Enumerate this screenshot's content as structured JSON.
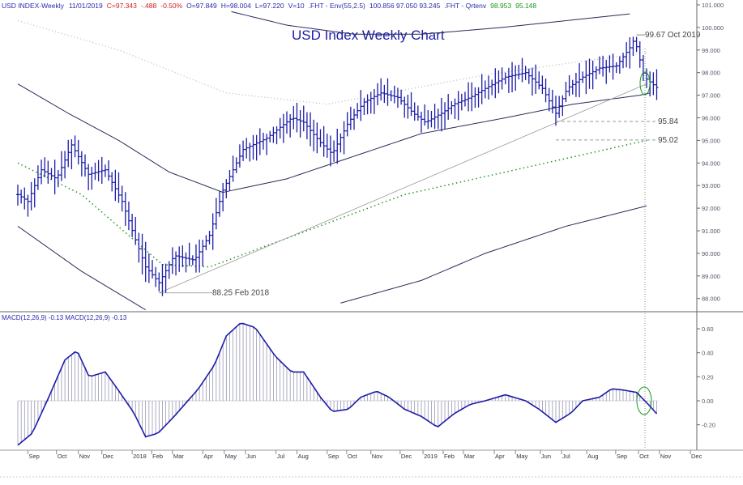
{
  "header": {
    "symbol": "USD INDEX-Weekly",
    "date": "11/01/2019",
    "close": "C=97.343",
    "change": "-.488",
    "pct": "-0.50%",
    "open": "O=97.849",
    "high": "H=98.004",
    "low": "L=97.220",
    "vol": "V=10",
    "env_label": ".FHT - Env(55,2.5)",
    "env_vals": "100.856   97.050   93.245",
    "qrt_label": ".FHT - Qrtenv",
    "qrt_v1": "98.953",
    "qrt_v2": "95.148"
  },
  "macd_header": "MACD(12,26,9)  -0.13  MACD(12,26,9)  -0.13",
  "colors": {
    "bars": "#1c1ca8",
    "env": "#2a2a5a",
    "green": "#1a9a1a",
    "grid": "#888888",
    "red": "#d02020"
  },
  "chart_data": [
    {
      "type": "line",
      "title": "USD Index Weekly Chart",
      "ylim": [
        87.6,
        101.2
      ],
      "yticks": [
        "101.000",
        "100.000",
        "99.000",
        "98.000",
        "97.000",
        "96.000",
        "95.000",
        "94.000",
        "93.000",
        "92.000",
        "91.000",
        "90.000",
        "89.000",
        "88.000"
      ],
      "xlabel_weeks_per_unit": "weekly",
      "close_anchors": [
        [
          0,
          92.6
        ],
        [
          3,
          92.3
        ],
        [
          7,
          93.7
        ],
        [
          11.5,
          93.3
        ],
        [
          16,
          94.8
        ],
        [
          21,
          93.5
        ],
        [
          26,
          93.7
        ],
        [
          31,
          92.3
        ],
        [
          34.5,
          90.8
        ],
        [
          38,
          89.4
        ],
        [
          42,
          88.7
        ],
        [
          46.5,
          89.9
        ],
        [
          52.5,
          89.7
        ],
        [
          57,
          90.8
        ],
        [
          61,
          92.8
        ],
        [
          67,
          94.6
        ],
        [
          74,
          95.1
        ],
        [
          81.5,
          96.0
        ],
        [
          85,
          95.8
        ],
        [
          90,
          94.9
        ],
        [
          93.5,
          94.4
        ],
        [
          98.3,
          95.8
        ],
        [
          103,
          96.7
        ],
        [
          108,
          97.1
        ],
        [
          113,
          96.9
        ],
        [
          117.6,
          96.2
        ],
        [
          121.2,
          95.8
        ],
        [
          126,
          96.2
        ],
        [
          129.6,
          96.6
        ],
        [
          134.5,
          96.9
        ],
        [
          139,
          97.3
        ],
        [
          145,
          97.8
        ],
        [
          151,
          98.0
        ],
        [
          156,
          97.3
        ],
        [
          160,
          96.2
        ],
        [
          163.4,
          97.3
        ],
        [
          168,
          97.8
        ],
        [
          173,
          98.2
        ],
        [
          178,
          98.3
        ],
        [
          182,
          99.1
        ],
        [
          183.4,
          99.5
        ],
        [
          186.3,
          97.8
        ],
        [
          190,
          97.34
        ]
      ],
      "mid_ma": [
        [
          0,
          97.5
        ],
        [
          15,
          96.2
        ],
        [
          30,
          95.0
        ],
        [
          45,
          93.6
        ],
        [
          61,
          92.7
        ],
        [
          80,
          93.3
        ],
        [
          100,
          94.3
        ],
        [
          120,
          95.3
        ],
        [
          145,
          96.0
        ],
        [
          165,
          96.6
        ],
        [
          185,
          97.0
        ],
        [
          188,
          97.1
        ]
      ],
      "upper_env": [
        [
          63.5,
          100.7
        ],
        [
          80,
          100.1
        ],
        [
          100,
          99.7
        ],
        [
          120,
          99.7
        ],
        [
          144,
          100.0
        ],
        [
          182,
          100.6
        ]
      ],
      "lower_env_a": [
        [
          0,
          91.2
        ],
        [
          19,
          89.2
        ],
        [
          38,
          87.5
        ]
      ],
      "lower_env_b": [
        [
          96,
          87.8
        ],
        [
          120,
          88.8
        ],
        [
          139,
          90.0
        ],
        [
          163,
          91.2
        ],
        [
          187,
          92.1
        ]
      ],
      "qrt_upper": [
        [
          0,
          100.3
        ],
        [
          30,
          99.0
        ],
        [
          62,
          97.1
        ],
        [
          92,
          96.6
        ],
        [
          139,
          97.9
        ],
        [
          187,
          98.9
        ]
      ],
      "qrt_lower": [
        [
          0,
          94.0
        ],
        [
          19,
          92.6
        ],
        [
          43,
          89.5
        ],
        [
          57,
          89.4
        ],
        [
          115,
          92.6
        ],
        [
          163,
          94.2
        ],
        [
          187,
          95.0
        ]
      ],
      "trendline": [
        [
          42,
          88.25
        ],
        [
          187,
          97.5
        ]
      ],
      "annotations": [
        {
          "label": "88.25 Feb 2018",
          "week": 42,
          "price": 88.25
        },
        {
          "label": "99.67 Oct 2019",
          "week": 184,
          "price": 99.67
        },
        {
          "label": "95.84",
          "week": 160,
          "price": 95.84
        },
        {
          "label": "95.02",
          "week": 160,
          "price": 95.02
        }
      ]
    },
    {
      "type": "bar",
      "title": "MACD(12,26,9)",
      "ylim": [
        -0.4,
        0.75
      ],
      "yticks": [
        {
          "v": 0.6,
          "l": "0.60"
        },
        {
          "v": 0.4,
          "l": "0.40"
        },
        {
          "v": 0.2,
          "l": "0.20"
        },
        {
          "v": 0,
          "l": "0.00"
        },
        {
          "v": -0.2,
          "l": "-0.20"
        }
      ],
      "macd_anchors": [
        [
          0,
          -0.37
        ],
        [
          4.3,
          -0.27
        ],
        [
          9.2,
          0.03
        ],
        [
          14,
          0.34
        ],
        [
          17.6,
          0.42
        ],
        [
          21.2,
          0.2
        ],
        [
          26,
          0.24
        ],
        [
          29.6,
          0.1
        ],
        [
          34.5,
          -0.1
        ],
        [
          38,
          -0.3
        ],
        [
          41.7,
          -0.27
        ],
        [
          46.5,
          -0.13
        ],
        [
          53.7,
          0.1
        ],
        [
          58.5,
          0.3
        ],
        [
          62,
          0.54
        ],
        [
          66.3,
          0.65
        ],
        [
          70.6,
          0.61
        ],
        [
          76.6,
          0.37
        ],
        [
          81.4,
          0.24
        ],
        [
          85,
          0.24
        ],
        [
          90,
          0.03
        ],
        [
          93.5,
          -0.09
        ],
        [
          98.3,
          -0.07
        ],
        [
          102,
          0.03
        ],
        [
          106.7,
          0.08
        ],
        [
          110.4,
          0.03
        ],
        [
          115,
          -0.07
        ],
        [
          120,
          -0.13
        ],
        [
          124.8,
          -0.22
        ],
        [
          129.6,
          -0.11
        ],
        [
          134.5,
          -0.03
        ],
        [
          139,
          0
        ],
        [
          145,
          0.05
        ],
        [
          151,
          0
        ],
        [
          155,
          -0.07
        ],
        [
          160,
          -0.18
        ],
        [
          164.6,
          -0.1
        ],
        [
          168,
          0
        ],
        [
          173,
          0.03
        ],
        [
          176.6,
          0.1
        ],
        [
          180,
          0.09
        ],
        [
          184,
          0.07
        ],
        [
          187.5,
          -0.03
        ],
        [
          190.4,
          -0.12
        ]
      ]
    }
  ],
  "x_axis": [
    {
      "l": "Sep",
      "w": 3
    },
    {
      "l": "Oct",
      "w": 11.5
    },
    {
      "l": "Nov",
      "w": 18
    },
    {
      "l": "Dec",
      "w": 25
    },
    {
      "l": "2018",
      "w": 34
    },
    {
      "l": "Feb",
      "w": 39.8
    },
    {
      "l": "Mar",
      "w": 46
    },
    {
      "l": "Apr",
      "w": 55
    },
    {
      "l": "May",
      "w": 61.4
    },
    {
      "l": "Jun",
      "w": 67.7
    },
    {
      "l": "Jul",
      "w": 76.8
    },
    {
      "l": "Aug",
      "w": 83
    },
    {
      "l": "Sep",
      "w": 92
    },
    {
      "l": "Oct",
      "w": 97.8
    },
    {
      "l": "Nov",
      "w": 105
    },
    {
      "l": "Dec",
      "w": 113.7
    },
    {
      "l": "2019",
      "w": 120.5
    },
    {
      "l": "Feb",
      "w": 126.5
    },
    {
      "l": "Mar",
      "w": 132.5
    },
    {
      "l": "Apr",
      "w": 141.7
    },
    {
      "l": "May",
      "w": 148
    },
    {
      "l": "Jun",
      "w": 155.4
    },
    {
      "l": "Jul",
      "w": 161.7
    },
    {
      "l": "Aug",
      "w": 169.2
    },
    {
      "l": "Sep",
      "w": 177.8
    },
    {
      "l": "Oct",
      "w": 184.6
    },
    {
      "l": "Nov",
      "w": 190.8
    },
    {
      "l": "Dec",
      "w": 200
    }
  ]
}
